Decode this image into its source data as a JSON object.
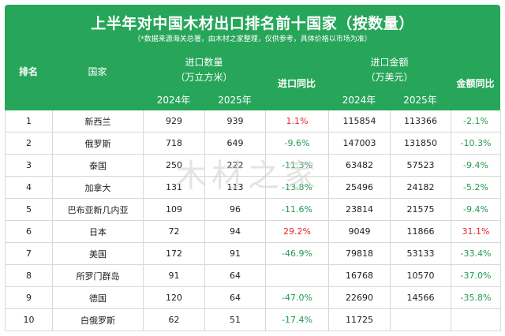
{
  "title": "上半年对中国木材出口排名前十国家（按数量）",
  "subtitle": "（*数据来源海关总署，由木材之家整理，仅供参考，具体价格以市场为准）",
  "headers": {
    "rank": "排名",
    "country": "国家",
    "volume_line1": "进口数量",
    "volume_line2": "（万立方米）",
    "volume_yoy": "进口同比",
    "amount_line1": "进口金额",
    "amount_line2": "（万美元）",
    "amount_yoy": "金额同比",
    "year_2024": "2024年",
    "year_2025": "2025年"
  },
  "colors": {
    "header_bg": "#27a65a",
    "increase": "#e8262a",
    "decrease": "#229a50"
  },
  "rows": [
    {
      "rank": "1",
      "country": "新西兰",
      "vol2024": "929",
      "vol2025": "939",
      "vol_yoy": "1.1%",
      "vol_dir": "up",
      "amt2024": "115854",
      "amt2025": "113366",
      "amt_yoy": "-2.1%",
      "amt_dir": "down"
    },
    {
      "rank": "2",
      "country": "俄罗斯",
      "vol2024": "718",
      "vol2025": "649",
      "vol_yoy": "-9.6%",
      "vol_dir": "down",
      "amt2024": "147003",
      "amt2025": "131850",
      "amt_yoy": "-10.3%",
      "amt_dir": "down"
    },
    {
      "rank": "3",
      "country": "泰国",
      "vol2024": "250",
      "vol2025": "222",
      "vol_yoy": "-11.3%",
      "vol_dir": "down",
      "amt2024": "63482",
      "amt2025": "57523",
      "amt_yoy": "-9.4%",
      "amt_dir": "down"
    },
    {
      "rank": "4",
      "country": "加拿大",
      "vol2024": "131",
      "vol2025": "113",
      "vol_yoy": "-13.8%",
      "vol_dir": "down",
      "amt2024": "25496",
      "amt2025": "24182",
      "amt_yoy": "-5.2%",
      "amt_dir": "down"
    },
    {
      "rank": "5",
      "country": "巴布亚新几内亚",
      "vol2024": "109",
      "vol2025": "96",
      "vol_yoy": "-11.6%",
      "vol_dir": "down",
      "amt2024": "23814",
      "amt2025": "21575",
      "amt_yoy": "-9.4%",
      "amt_dir": "down"
    },
    {
      "rank": "6",
      "country": "日本",
      "vol2024": "72",
      "vol2025": "94",
      "vol_yoy": "29.2%",
      "vol_dir": "up",
      "amt2024": "9049",
      "amt2025": "11866",
      "amt_yoy": "31.1%",
      "amt_dir": "up"
    },
    {
      "rank": "7",
      "country": "美国",
      "vol2024": "172",
      "vol2025": "91",
      "vol_yoy": "-46.9%",
      "vol_dir": "down",
      "amt2024": "79818",
      "amt2025": "53133",
      "amt_yoy": "-33.4%",
      "amt_dir": "down"
    },
    {
      "rank": "8",
      "country": "所罗门群岛",
      "vol2024": "91",
      "vol2025": "64",
      "vol_yoy": "",
      "vol_dir": "down",
      "amt2024": "16768",
      "amt2025": "10570",
      "amt_yoy": "-37.0%",
      "amt_dir": "down"
    },
    {
      "rank": "9",
      "country": "德国",
      "vol2024": "120",
      "vol2025": "64",
      "vol_yoy": "-47.0%",
      "vol_dir": "down",
      "amt2024": "22690",
      "amt2025": "14566",
      "amt_yoy": "-35.8%",
      "amt_dir": "down"
    },
    {
      "rank": "10",
      "country": "白俄罗斯",
      "vol2024": "62",
      "vol2025": "51",
      "vol_yoy": "-17.4%",
      "vol_dir": "down",
      "amt2024": "11725",
      "amt2025": "",
      "amt_yoy": "",
      "amt_dir": "down"
    }
  ],
  "watermark": "木材之家"
}
